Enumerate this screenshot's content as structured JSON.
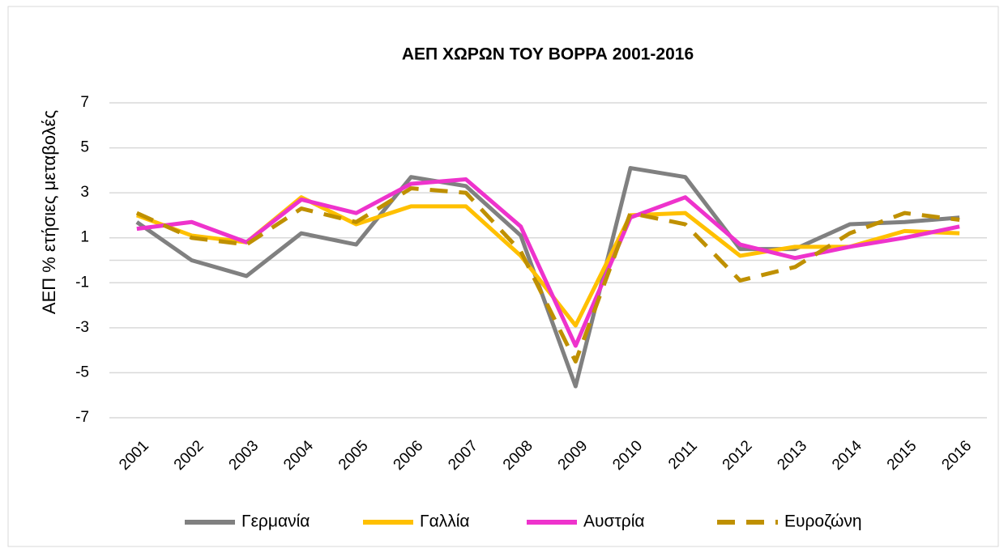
{
  "chart_data": {
    "type": "line",
    "title": "ΑΕΠ ΧΩΡΩΝ ΤΟΥ ΒΟΡΡΑ 2001-2016",
    "y_label": "ΑΕΠ % ετήσιες μεταβολές",
    "categories": [
      "2001",
      "2002",
      "2003",
      "2004",
      "2005",
      "2006",
      "2007",
      "2008",
      "2009",
      "2010",
      "2011",
      "2012",
      "2013",
      "2014",
      "2015",
      "2016"
    ],
    "series": [
      {
        "name": "Γερμανία",
        "color": "#808080",
        "dashed": false,
        "values": [
          1.7,
          0.0,
          -0.7,
          1.2,
          0.7,
          3.7,
          3.3,
          1.1,
          -5.6,
          4.1,
          3.7,
          0.5,
          0.5,
          1.6,
          1.7,
          1.9
        ]
      },
      {
        "name": "Γαλλία",
        "color": "#FFC000",
        "dashed": false,
        "values": [
          2.0,
          1.1,
          0.8,
          2.8,
          1.6,
          2.4,
          2.4,
          0.2,
          -2.9,
          2.0,
          2.1,
          0.2,
          0.6,
          0.6,
          1.3,
          1.2
        ]
      },
      {
        "name": "Αυστρία",
        "color": "#EE33CC",
        "dashed": false,
        "values": [
          1.4,
          1.7,
          0.8,
          2.7,
          2.1,
          3.4,
          3.6,
          1.5,
          -3.8,
          1.9,
          2.8,
          0.7,
          0.1,
          0.6,
          1.0,
          1.5
        ]
      },
      {
        "name": "Ευροζώνη",
        "color": "#BF9000",
        "dashed": true,
        "values": [
          2.1,
          1.0,
          0.7,
          2.3,
          1.7,
          3.2,
          3.0,
          0.4,
          -4.5,
          2.1,
          1.6,
          -0.9,
          -0.3,
          1.2,
          2.1,
          1.8
        ]
      }
    ],
    "ylim": [
      -7,
      7
    ],
    "yticks": [
      -7,
      -5,
      -3,
      -1,
      1,
      3,
      5,
      7
    ],
    "grid": true,
    "zero_line": true,
    "legend": "bottom"
  }
}
